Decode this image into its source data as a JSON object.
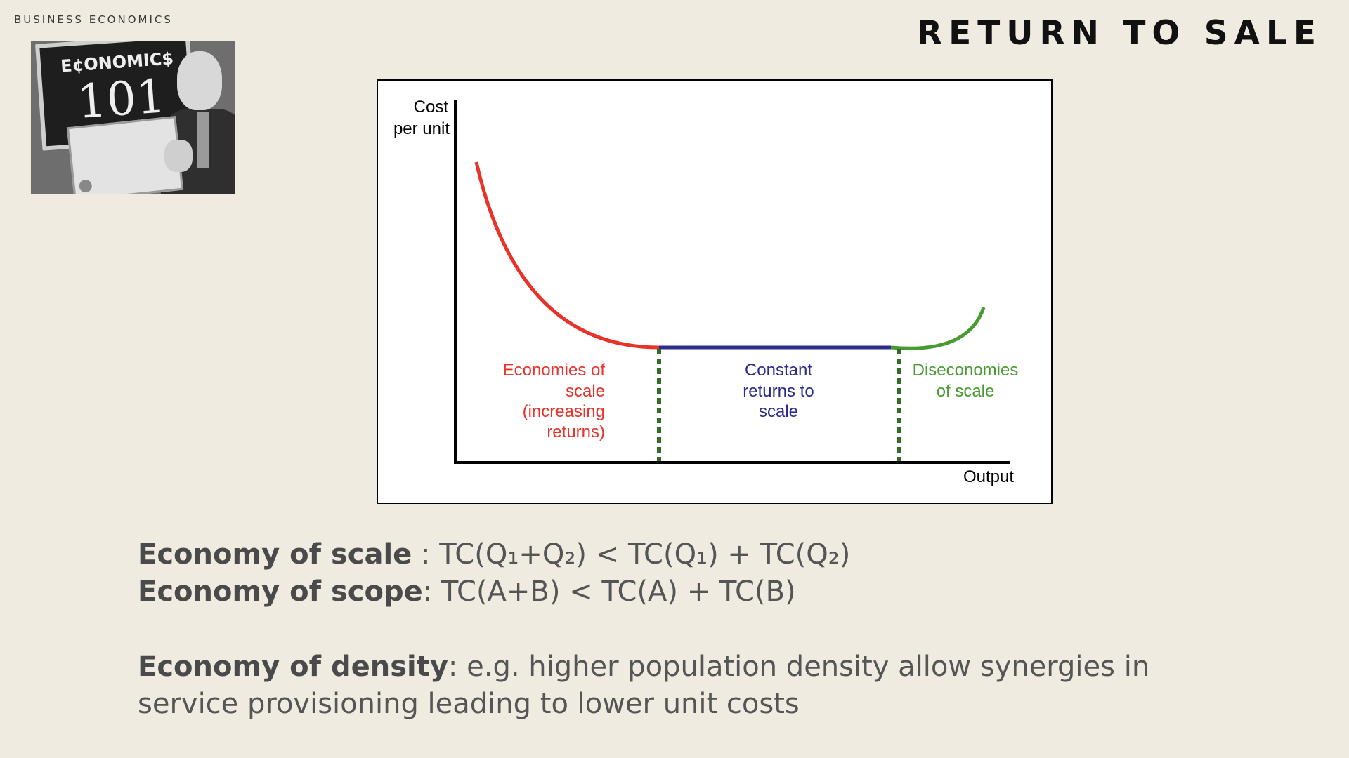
{
  "header": {
    "kicker": "BUSINESS ECONOMICS",
    "title": "RETURN TO SALE"
  },
  "photo": {
    "board_line1": "E¢ONOMIC$",
    "board_line2": "101"
  },
  "diagram": {
    "y_axis_label_line1": "Cost",
    "y_axis_label_line2": "per unit",
    "x_axis_label": "Output",
    "colors": {
      "economies": "#e8322a",
      "constant": "#2c2c8c",
      "diseconomies": "#4a9a32",
      "divider": "#2e6e22"
    },
    "regions": {
      "economies": [
        "Economies of",
        "scale",
        "(increasing",
        "returns)"
      ],
      "constant": [
        "Constant",
        "returns to",
        "scale"
      ],
      "diseconomies": [
        "Diseconomies",
        "of scale"
      ]
    }
  },
  "notes": {
    "scale_term": "Economy of scale",
    "scale_formula": " : TC(Q₁+Q₂) < TC(Q₁) + TC(Q₂)",
    "scope_term": "Economy of scope",
    "scope_formula": ": TC(A+B) < TC(A) + TC(B)",
    "density_term": "Economy of density",
    "density_text_line1": ": e.g. higher population density allow synergies in",
    "density_text_line2": "service provisioning leading to lower unit costs"
  }
}
